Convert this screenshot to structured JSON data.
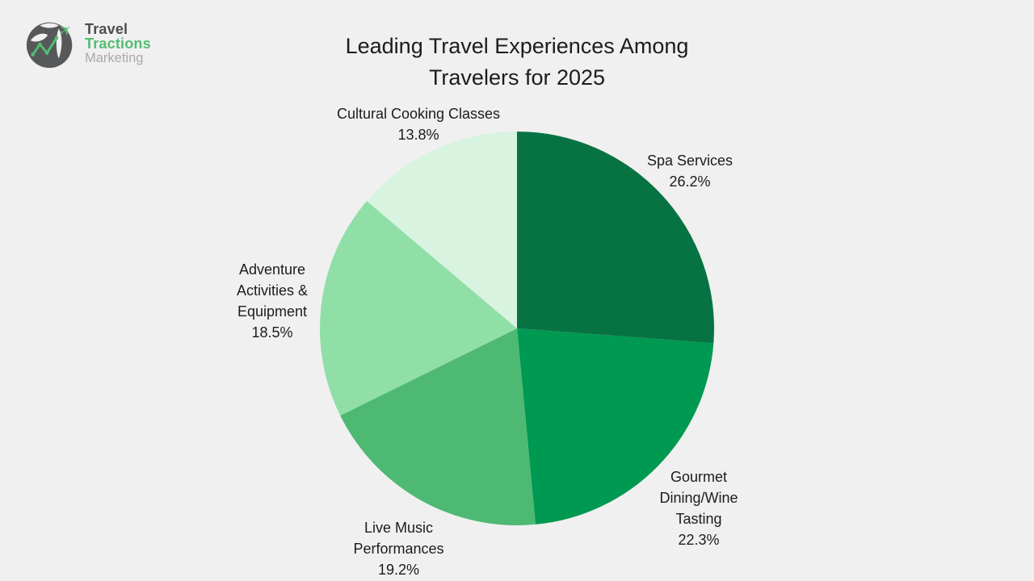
{
  "background_color": "#f0f0f0",
  "text_color": "#1c1c1c",
  "logo": {
    "word1": "Travel",
    "word2": "Tractions",
    "word3": "Marketing",
    "word1_color": "#4d4d4d",
    "word2_color": "#52bd72",
    "word3_color": "#a9a9a9",
    "globe_color": "#57585a",
    "accent_color": "#52bd72"
  },
  "title": {
    "line1": "Leading Travel Experiences Among",
    "line2": "Travelers for 2025"
  },
  "chart_data": {
    "type": "pie",
    "title": "Leading Travel Experiences Among Travelers for 2025",
    "start_angle_deg": 0,
    "direction": "clockwise",
    "total": 100,
    "legend": "none",
    "labels_position": "outside",
    "slices": [
      {
        "label": "Spa Services",
        "value": 26.2,
        "pct_label": "26.2%",
        "color": "#077343"
      },
      {
        "label": "Gourmet Dining/Wine Tasting",
        "value": 22.3,
        "pct_label": "22.3%",
        "color": "#009951"
      },
      {
        "label": "Live Music Performances",
        "value": 19.2,
        "pct_label": "19.2%",
        "color": "#4db973"
      },
      {
        "label": "Adventure Activities & Equipment",
        "value": 18.5,
        "pct_label": "18.5%",
        "color": "#90dfa7"
      },
      {
        "label": "Cultural Cooking Classes",
        "value": 13.8,
        "pct_label": "13.8%",
        "color": "#d8f3e0"
      }
    ]
  }
}
